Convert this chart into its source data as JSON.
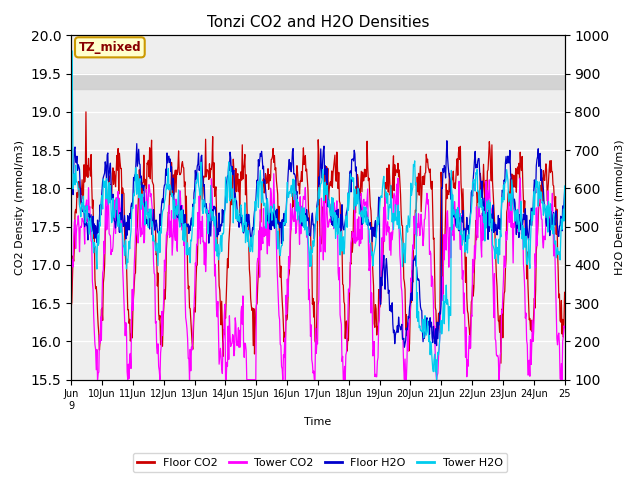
{
  "title": "Tonzi CO2 and H2O Densities",
  "xlabel": "Time",
  "ylabel_left": "CO2 Density (mmol/m3)",
  "ylabel_right": "H2O Density (mmol/m3)",
  "ylim_left": [
    15.5,
    20.0
  ],
  "ylim_right": [
    100,
    1000
  ],
  "shade_band": [
    19.3,
    19.5
  ],
  "annotation_text": "TZ_mixed",
  "legend_entries": [
    "Floor CO2",
    "Tower CO2",
    "Floor H2O",
    "Tower H2O"
  ],
  "line_colors": [
    "#cc0000",
    "#ff00ff",
    "#0000cc",
    "#00ccee"
  ],
  "background_color": "#eeeeee",
  "title_fontsize": 11,
  "n_points": 768
}
